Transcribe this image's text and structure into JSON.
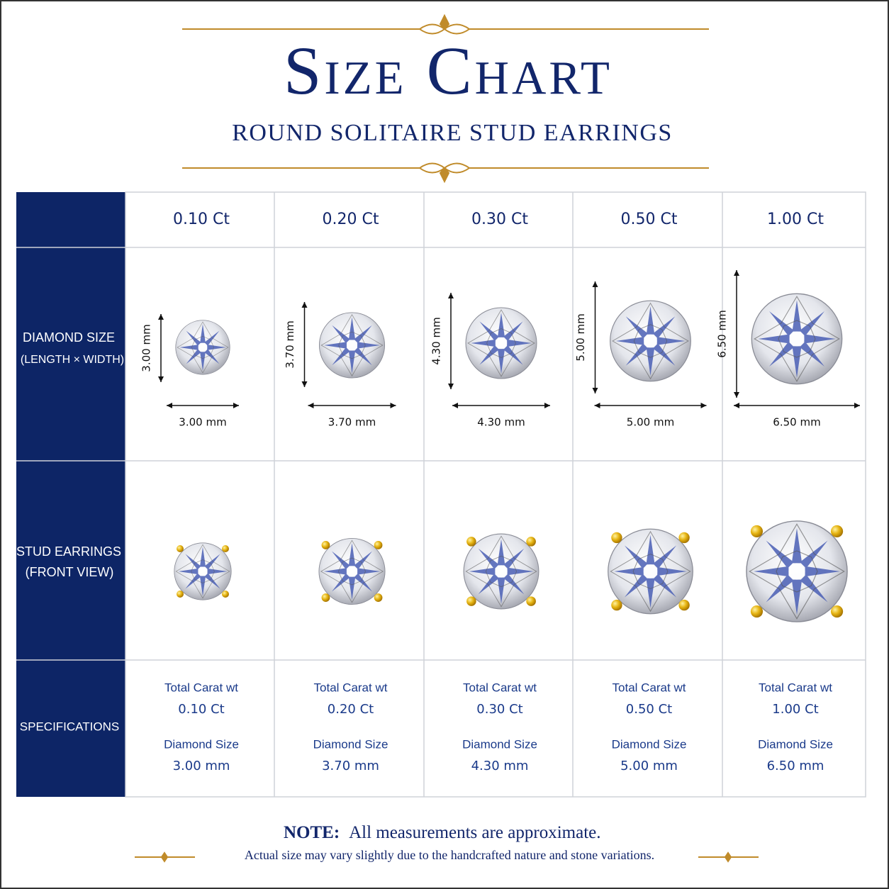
{
  "header": {
    "title": "Size Chart",
    "subtitle": "ROUND SOLITAIRE STUD EARRINGS"
  },
  "table": {
    "row_labels": [
      {
        "line1": "DIAMOND SIZE",
        "line2": "(LENGTH × WIDTH)"
      },
      {
        "line1": "STUD EARRINGS",
        "line2": "(FRONT VIEW)"
      },
      {
        "line1": "SPECIFICATIONS"
      }
    ],
    "columns": [
      {
        "header": "0.10 Ct",
        "height_label": "3.00 mm",
        "width_label": "3.00 mm",
        "spec": [
          {
            "label": "Total Carat wt",
            "value": "0.10 Ct"
          },
          {
            "label": "Diamond Size",
            "value": "3.00 mm"
          }
        ]
      },
      {
        "header": "0.20 Ct",
        "height_label": "3.70 mm",
        "width_label": "3.70 mm",
        "spec": [
          {
            "label": "Total Carat wt",
            "value": "0.20 Ct"
          },
          {
            "label": "Diamond Size",
            "value": "3.70 mm"
          }
        ]
      },
      {
        "header": "0.30 Ct",
        "height_label": "4.30 mm",
        "width_label": "4.30 mm",
        "spec": [
          {
            "label": "Total Carat wt",
            "value": "0.30 Ct"
          },
          {
            "label": "Diamond Size",
            "value": "4.30 mm"
          }
        ]
      },
      {
        "header": "0.50 Ct",
        "height_label": "5.00 mm",
        "width_label": "5.00 mm",
        "spec": [
          {
            "label": "Total Carat wt",
            "value": "0.50 Ct"
          },
          {
            "label": "Diamond Size",
            "value": "5.00 mm"
          }
        ]
      },
      {
        "header": "1.00 Ct",
        "height_label": "6.50 mm",
        "width_label": "6.50 mm",
        "spec": [
          {
            "label": "Total Carat wt",
            "value": "1.00 Ct"
          },
          {
            "label": "Diamond Size",
            "value": "6.50 mm"
          }
        ]
      }
    ]
  },
  "note": {
    "label": "NOTE:",
    "text": "All measurements are approximate.",
    "detail": "Actual size may vary slightly due to the handcrafted nature and stone variations."
  }
}
